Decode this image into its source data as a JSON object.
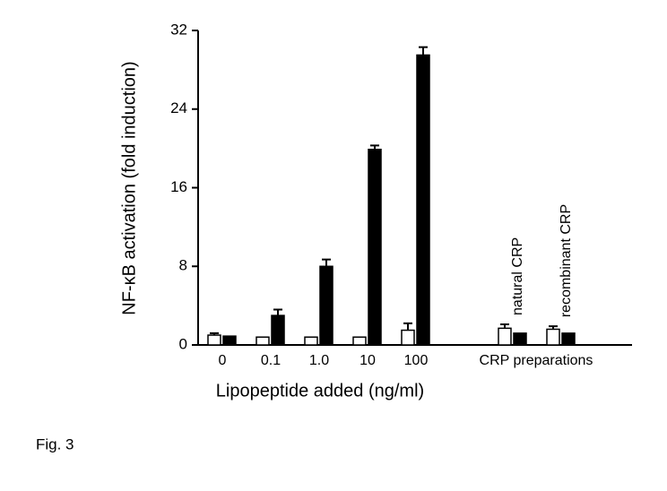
{
  "chart_data": {
    "type": "bar",
    "y_label": "NF-κB activation (fold induction)",
    "x_label": "Lipopeptide added (ng/ml)",
    "group_label": "CRP preparations",
    "figure_label": "Fig. 3",
    "categories": [
      "0",
      "0.1",
      "1.0",
      "10",
      "100",
      null,
      "natural CRP",
      "recombinant CRP"
    ],
    "series": [
      {
        "color": "#ffffff",
        "values": [
          1.0,
          0.8,
          0.8,
          0.8,
          1.5,
          null,
          1.7,
          1.6
        ],
        "errors": [
          0.2,
          null,
          null,
          null,
          0.7,
          null,
          0.4,
          0.3
        ]
      },
      {
        "color": "#000000",
        "values": [
          0.9,
          3.0,
          8.0,
          19.9,
          29.5,
          null,
          1.2,
          1.2
        ],
        "errors": [
          null,
          0.6,
          0.7,
          0.4,
          0.8,
          null,
          null,
          null
        ]
      }
    ],
    "ylim": [
      0,
      32
    ],
    "yticks": [
      0,
      8,
      16,
      24,
      32
    ]
  }
}
